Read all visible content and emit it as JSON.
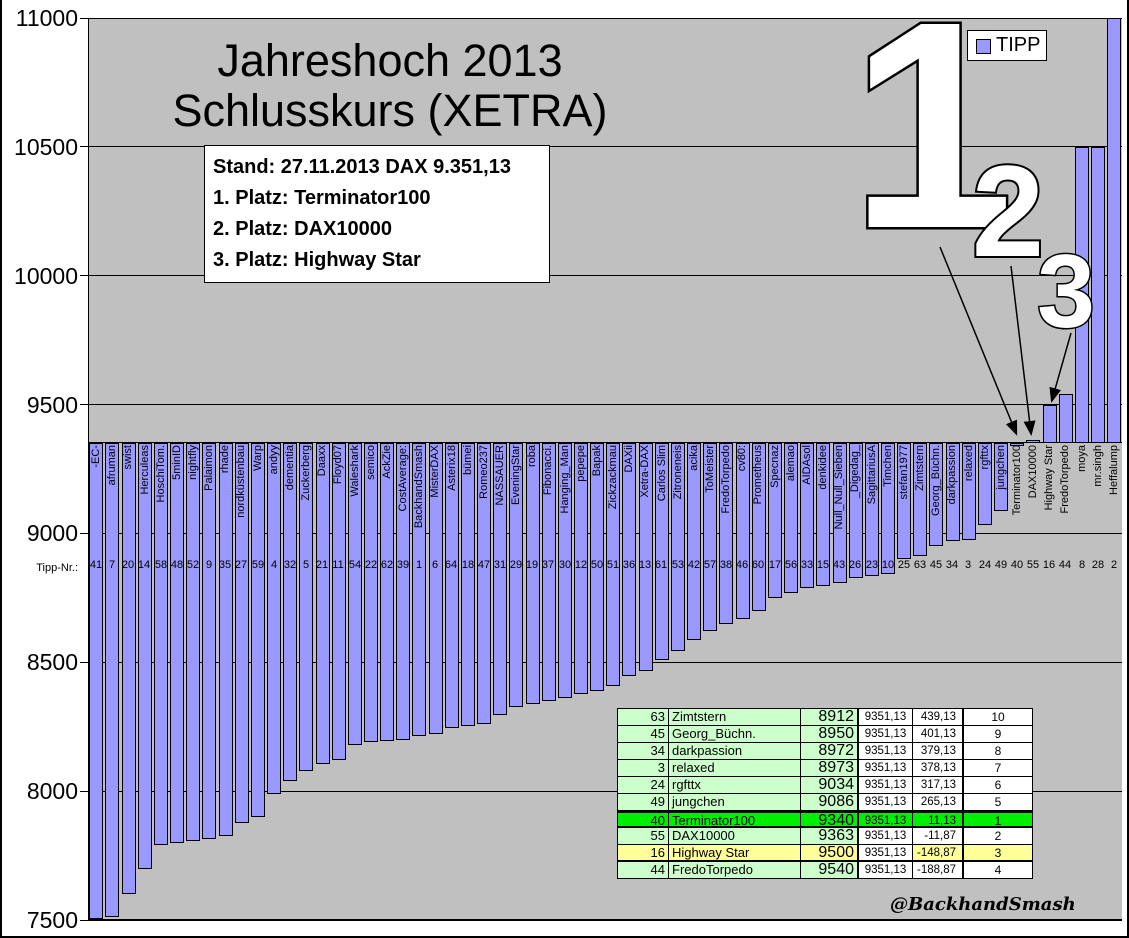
{
  "title": {
    "line1": "Jahreshoch 2013",
    "line2": "Schlusskurs (XETRA)"
  },
  "info_box": {
    "lines": [
      "Stand: 27.11.2013 DAX 9.351,13",
      "1. Platz: Terminator100",
      "2. Platz: DAX10000",
      "3. Platz: Highway Star"
    ]
  },
  "legend": {
    "label": "TIPP"
  },
  "axis": {
    "tipp_nr_label": "Tipp-Nr.:"
  },
  "annotations": {
    "rank1": "1",
    "rank2": "2",
    "rank3": "3"
  },
  "watermark": "@BackhandSmash",
  "colors": {
    "bar": "#9999ff",
    "plot_background": "#c0c0c0",
    "table_green_light": "#ccffcc",
    "table_green_winner": "#00ee00",
    "table_yellow": "#ffff99",
    "outline_text": "#ffffff"
  },
  "chart_data": {
    "type": "bar",
    "title": "Jahreshoch 2013 Schlusskurs (XETRA)",
    "ylabel": "",
    "xlabel": "Tipp-Nr.:",
    "ylim": [
      7500,
      11000
    ],
    "ytick_step": 500,
    "baseline_value": 9351.13,
    "grid": true,
    "legend_position": "top-right",
    "series_name": "TIPP",
    "bars": [
      {
        "name": "-EC-",
        "tipp_nr": 41,
        "value": 7505
      },
      {
        "name": "afruman",
        "tipp_nr": 7,
        "value": 7512
      },
      {
        "name": "swist",
        "tipp_nr": 20,
        "value": 7600
      },
      {
        "name": "Herculeas",
        "tipp_nr": 14,
        "value": 7700
      },
      {
        "name": "HoschiTom.",
        "tipp_nr": 58,
        "value": 7790
      },
      {
        "name": "5minID",
        "tipp_nr": 48,
        "value": 7800
      },
      {
        "name": "nightfly",
        "tipp_nr": 52,
        "value": 7805
      },
      {
        "name": "Palaimon",
        "tipp_nr": 9,
        "value": 7815
      },
      {
        "name": "rhade",
        "tipp_nr": 35,
        "value": 7825
      },
      {
        "name": "nordküstenbau",
        "tipp_nr": 27,
        "value": 7875
      },
      {
        "name": "Warp",
        "tipp_nr": 59,
        "value": 7900
      },
      {
        "name": "andyy",
        "tipp_nr": 4,
        "value": 7990
      },
      {
        "name": "dementia",
        "tipp_nr": 32,
        "value": 8040
      },
      {
        "name": "Zuckerberg",
        "tipp_nr": 5,
        "value": 8080
      },
      {
        "name": "Daaxx",
        "tipp_nr": 21,
        "value": 8105
      },
      {
        "name": "Floyd07",
        "tipp_nr": 11,
        "value": 8120
      },
      {
        "name": "Waleshark",
        "tipp_nr": 54,
        "value": 8180
      },
      {
        "name": "semico",
        "tipp_nr": 22,
        "value": 8190
      },
      {
        "name": "AckZie",
        "tipp_nr": 62,
        "value": 8196
      },
      {
        "name": "CostAverage:",
        "tipp_nr": 39,
        "value": 8200
      },
      {
        "name": "BackhandSmash",
        "tipp_nr": 1,
        "value": 8215
      },
      {
        "name": "MisterDAX",
        "tipp_nr": 6,
        "value": 8222
      },
      {
        "name": "Asterix18",
        "tipp_nr": 64,
        "value": 8247
      },
      {
        "name": "bümei",
        "tipp_nr": 18,
        "value": 8254
      },
      {
        "name": "Romeo237",
        "tipp_nr": 47,
        "value": 8260
      },
      {
        "name": "NASSAUER",
        "tipp_nr": 31,
        "value": 8295
      },
      {
        "name": "EveningStar",
        "tipp_nr": 29,
        "value": 8325
      },
      {
        "name": "roba",
        "tipp_nr": 19,
        "value": 8338
      },
      {
        "name": "Fibonacci.",
        "tipp_nr": 37,
        "value": 8350
      },
      {
        "name": "Hanging_Man",
        "tipp_nr": 30,
        "value": 8360
      },
      {
        "name": "pepepe",
        "tipp_nr": 12,
        "value": 8377
      },
      {
        "name": "Bapak",
        "tipp_nr": 50,
        "value": 8390
      },
      {
        "name": "Zickzackmau",
        "tipp_nr": 51,
        "value": 8410
      },
      {
        "name": "DAXii",
        "tipp_nr": 36,
        "value": 8448
      },
      {
        "name": "Xetra-DAX",
        "tipp_nr": 13,
        "value": 8468
      },
      {
        "name": "Carlos Slim",
        "tipp_nr": 61,
        "value": 8510
      },
      {
        "name": "Zitroneneis",
        "tipp_nr": 53,
        "value": 8545
      },
      {
        "name": "acika",
        "tipp_nr": 42,
        "value": 8585
      },
      {
        "name": "ToMeister",
        "tipp_nr": 57,
        "value": 8620
      },
      {
        "name": "FredoTorpedo",
        "tipp_nr": 38,
        "value": 8650
      },
      {
        "name": "cv80:",
        "tipp_nr": 46,
        "value": 8668
      },
      {
        "name": "Prometheus",
        "tipp_nr": 60,
        "value": 8700
      },
      {
        "name": "Specnaz",
        "tipp_nr": 17,
        "value": 8750
      },
      {
        "name": "alemao",
        "tipp_nr": 56,
        "value": 8770
      },
      {
        "name": "AIDAsol",
        "tipp_nr": 33,
        "value": 8789
      },
      {
        "name": "denkidee",
        "tipp_nr": 15,
        "value": 8796
      },
      {
        "name": "Null_Null_Sieben",
        "tipp_nr": 43,
        "value": 8808
      },
      {
        "name": "_Digedag_",
        "tipp_nr": 26,
        "value": 8828
      },
      {
        "name": "SagittariusA",
        "tipp_nr": 23,
        "value": 8834
      },
      {
        "name": "Timchen",
        "tipp_nr": 10,
        "value": 8841
      },
      {
        "name": "stefan1977",
        "tipp_nr": 25,
        "value": 8900
      },
      {
        "name": "Zimtstern",
        "tipp_nr": 63,
        "value": 8912
      },
      {
        "name": "Georg_Büchn.",
        "tipp_nr": 45,
        "value": 8950
      },
      {
        "name": "darkpassion",
        "tipp_nr": 34,
        "value": 8972
      },
      {
        "name": "relaxed",
        "tipp_nr": 3,
        "value": 8973
      },
      {
        "name": "rgfttx",
        "tipp_nr": 24,
        "value": 9034
      },
      {
        "name": "jungchen",
        "tipp_nr": 49,
        "value": 9086
      },
      {
        "name": "Terminator100",
        "tipp_nr": 40,
        "value": 9340
      },
      {
        "name": "DAX10000",
        "tipp_nr": 55,
        "value": 9363
      },
      {
        "name": "Highway Star",
        "tipp_nr": 16,
        "value": 9500
      },
      {
        "name": "FredoTorpedo",
        "tipp_nr": 44,
        "value": 9540
      },
      {
        "name": "moya",
        "tipp_nr": 8,
        "value": 10500
      },
      {
        "name": "mr.singh",
        "tipp_nr": 28,
        "value": 10500
      },
      {
        "name": "Heffalump",
        "tipp_nr": 2,
        "value": 11000
      }
    ]
  },
  "table": {
    "rows": [
      {
        "tipp_nr": "63",
        "name": "Zimtstern",
        "tip": "8912",
        "dax": "9351,13",
        "diff": "439,13",
        "rank": "10",
        "highlight": "none"
      },
      {
        "tipp_nr": "45",
        "name": "Georg_Büchn.",
        "tip": "8950",
        "dax": "9351,13",
        "diff": "401,13",
        "rank": "9",
        "highlight": "none"
      },
      {
        "tipp_nr": "34",
        "name": "darkpassion",
        "tip": "8972",
        "dax": "9351,13",
        "diff": "379,13",
        "rank": "8",
        "highlight": "none"
      },
      {
        "tipp_nr": "3",
        "name": "relaxed",
        "tip": "8973",
        "dax": "9351,13",
        "diff": "378,13",
        "rank": "7",
        "highlight": "none"
      },
      {
        "tipp_nr": "24",
        "name": "rgfttx",
        "tip": "9034",
        "dax": "9351,13",
        "diff": "317,13",
        "rank": "6",
        "highlight": "none"
      },
      {
        "tipp_nr": "49",
        "name": "jungchen",
        "tip": "9086",
        "dax": "9351,13",
        "diff": "265,13",
        "rank": "5",
        "highlight": "none"
      },
      {
        "tipp_nr": "40",
        "name": "Terminator100",
        "tip": "9340",
        "dax": "9351,13",
        "diff": "11,13",
        "rank": "1",
        "highlight": "winner"
      },
      {
        "tipp_nr": "55",
        "name": "DAX10000",
        "tip": "9363",
        "dax": "9351,13",
        "diff": "-11,87",
        "rank": "2",
        "highlight": "none"
      },
      {
        "tipp_nr": "16",
        "name": "Highway Star",
        "tip": "9500",
        "dax": "9351,13",
        "diff": "-148,87",
        "rank": "3",
        "highlight": "third"
      },
      {
        "tipp_nr": "44",
        "name": "FredoTorpedo",
        "tip": "9540",
        "dax": "9351,13",
        "diff": "-188,87",
        "rank": "4",
        "highlight": "none"
      }
    ]
  }
}
